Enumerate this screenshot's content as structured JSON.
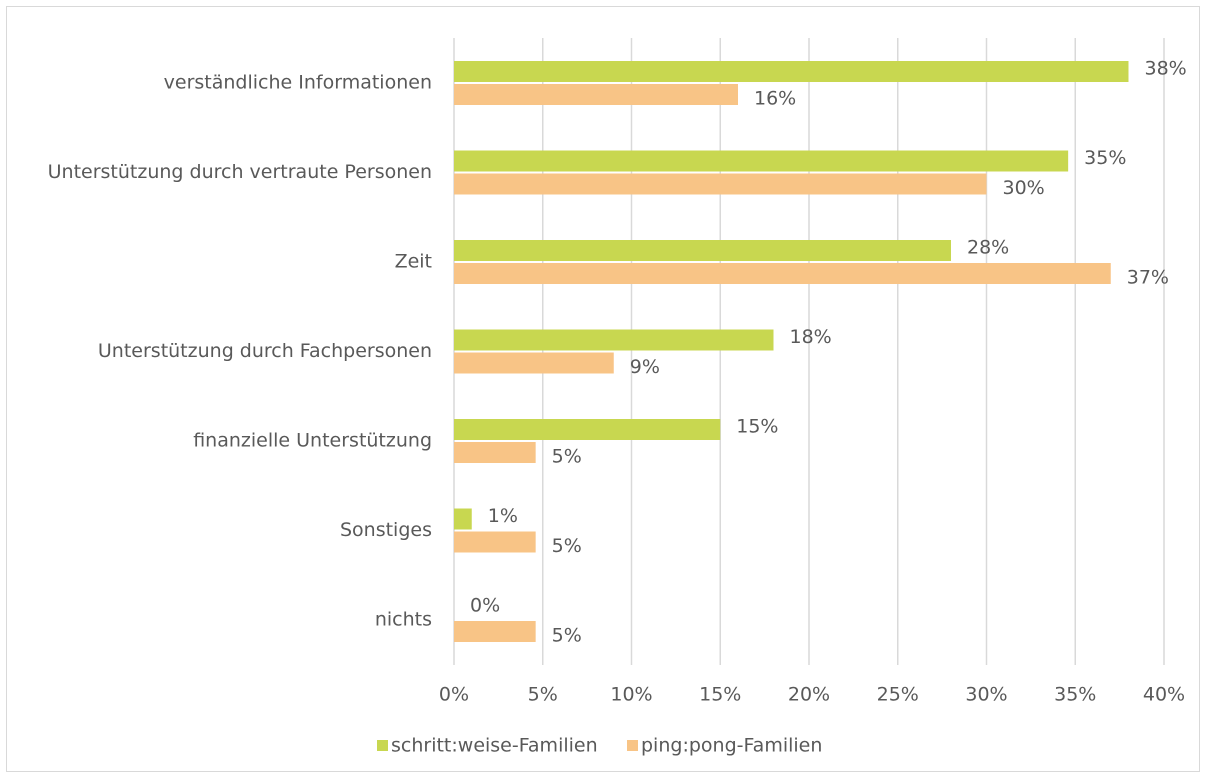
{
  "chart_data": {
    "type": "hbar",
    "categories": [
      "verständliche Informationen",
      "Unterstützung durch vertraute Personen",
      "Zeit",
      "Unterstützung durch Fachpersonen",
      "finanzielle Unterstützung",
      "Sonstiges",
      "nichts"
    ],
    "series": [
      {
        "name": "schritt:weise-Familien",
        "color": "#c8d750",
        "values": [
          38,
          34.6,
          28,
          18,
          15,
          1,
          0
        ],
        "value_labels": [
          "38%",
          "35%",
          "28%",
          "18%",
          "15%",
          "1%",
          "0%"
        ]
      },
      {
        "name": "ping:pong-Familien",
        "color": "#f8c486",
        "values": [
          16,
          30,
          37,
          9,
          4.6,
          4.6,
          4.6
        ],
        "value_labels": [
          "16%",
          "30%",
          "37%",
          "9%",
          "5%",
          "5%",
          "5%"
        ]
      }
    ],
    "xlim": [
      0,
      40
    ],
    "xticks": [
      {
        "value": 0,
        "label": "0%"
      },
      {
        "value": 5,
        "label": "5%"
      },
      {
        "value": 10,
        "label": "10%"
      },
      {
        "value": 15,
        "label": "15%"
      },
      {
        "value": 20,
        "label": "20%"
      },
      {
        "value": 25,
        "label": "25%"
      },
      {
        "value": 30,
        "label": "30%"
      },
      {
        "value": 35,
        "label": "35%"
      },
      {
        "value": 40,
        "label": "40%"
      }
    ],
    "grid": true,
    "legend": "bottom"
  }
}
